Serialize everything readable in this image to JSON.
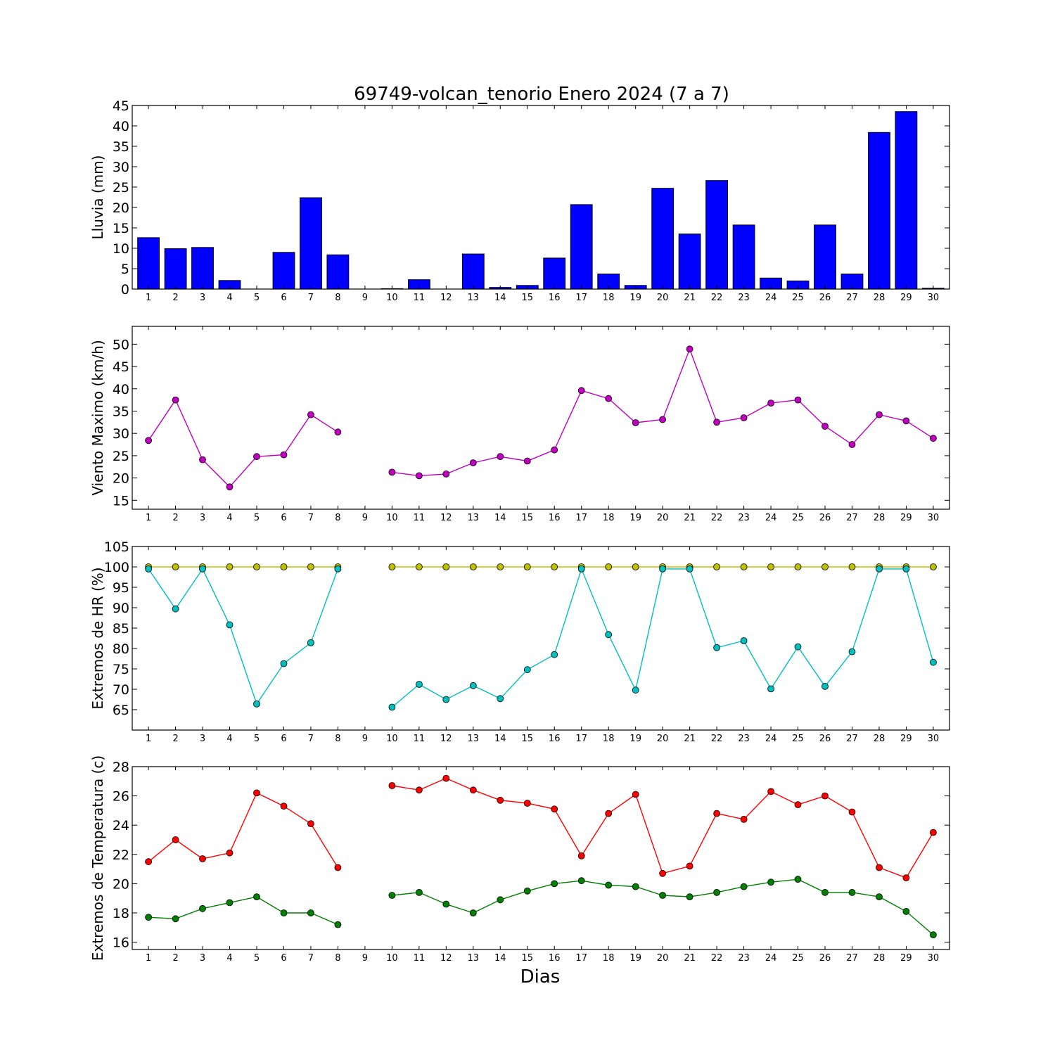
{
  "figure": {
    "title": "69749-volcan_tenorio Enero 2024  (7 a 7)",
    "xlabel": "Dias"
  },
  "chart_data": [
    {
      "type": "bar",
      "ylabel": "Lluvia (mm)",
      "ylim": [
        0,
        45
      ],
      "yticks": [
        0,
        5,
        10,
        15,
        20,
        25,
        30,
        35,
        40,
        45
      ],
      "categories": [
        "1",
        "2",
        "3",
        "4",
        "5",
        "6",
        "7",
        "8",
        "9",
        "10",
        "11",
        "12",
        "13",
        "14",
        "15",
        "16",
        "17",
        "18",
        "19",
        "20",
        "21",
        "22",
        "23",
        "24",
        "25",
        "26",
        "27",
        "28",
        "29",
        "30"
      ],
      "series": [
        {
          "color": "#0000ff",
          "values": [
            12.6,
            9.9,
            10.2,
            2.1,
            0.0,
            9.0,
            22.4,
            8.4,
            0.0,
            0.1,
            2.3,
            0.0,
            8.6,
            0.4,
            0.9,
            7.6,
            20.7,
            3.7,
            0.9,
            24.7,
            13.5,
            26.6,
            15.7,
            2.7,
            2.0,
            15.7,
            3.7,
            38.4,
            43.5,
            0.2
          ]
        }
      ],
      "grid": false
    },
    {
      "type": "line",
      "ylabel": "Viento Maximo (km/h)",
      "ylim": [
        13,
        54
      ],
      "yticks": [
        15,
        20,
        25,
        30,
        35,
        40,
        45,
        50
      ],
      "categories": [
        "1",
        "2",
        "3",
        "4",
        "5",
        "6",
        "7",
        "8",
        "9",
        "10",
        "11",
        "12",
        "13",
        "14",
        "15",
        "16",
        "17",
        "18",
        "19",
        "20",
        "21",
        "22",
        "23",
        "24",
        "25",
        "26",
        "27",
        "28",
        "29",
        "30"
      ],
      "series": [
        {
          "color": "#bf00bf",
          "values": [
            28.4,
            37.5,
            24.1,
            18.0,
            24.8,
            25.2,
            34.2,
            30.3,
            null,
            21.3,
            20.5,
            20.9,
            23.4,
            24.8,
            23.8,
            26.3,
            39.6,
            37.8,
            32.4,
            33.1,
            48.9,
            32.5,
            33.5,
            36.8,
            37.5,
            31.6,
            27.5,
            34.2,
            32.8,
            28.9
          ]
        }
      ],
      "grid": false
    },
    {
      "type": "line",
      "ylabel": "Extremos de HR (%)",
      "ylim": [
        60,
        105
      ],
      "yticks": [
        65,
        70,
        75,
        80,
        85,
        90,
        95,
        100,
        105
      ],
      "categories": [
        "1",
        "2",
        "3",
        "4",
        "5",
        "6",
        "7",
        "8",
        "9",
        "10",
        "11",
        "12",
        "13",
        "14",
        "15",
        "16",
        "17",
        "18",
        "19",
        "20",
        "21",
        "22",
        "23",
        "24",
        "25",
        "26",
        "27",
        "28",
        "29",
        "30"
      ],
      "series": [
        {
          "color": "#bfbf00",
          "values": [
            100,
            100,
            100,
            100,
            100,
            100,
            100,
            100,
            null,
            100,
            100,
            100,
            100,
            100,
            100,
            100,
            100,
            100,
            100,
            100,
            100,
            100,
            100,
            100,
            100,
            100,
            100,
            100,
            100,
            100
          ]
        },
        {
          "color": "#00bfbf",
          "values": [
            99.5,
            89.7,
            99.5,
            85.8,
            66.4,
            76.3,
            81.4,
            99.5,
            null,
            65.6,
            71.2,
            67.5,
            70.9,
            67.7,
            74.8,
            78.5,
            99.5,
            83.4,
            69.8,
            99.5,
            99.5,
            80.2,
            81.9,
            70.1,
            80.4,
            70.7,
            79.2,
            99.5,
            99.5,
            76.6
          ]
        }
      ],
      "grid": false
    },
    {
      "type": "line",
      "ylabel": "Extremos de Temperatura (c)",
      "ylim": [
        15.5,
        28
      ],
      "yticks": [
        16,
        18,
        20,
        22,
        24,
        26,
        28
      ],
      "categories": [
        "1",
        "2",
        "3",
        "4",
        "5",
        "6",
        "7",
        "8",
        "9",
        "10",
        "11",
        "12",
        "13",
        "14",
        "15",
        "16",
        "17",
        "18",
        "19",
        "20",
        "21",
        "22",
        "23",
        "24",
        "25",
        "26",
        "27",
        "28",
        "29",
        "30"
      ],
      "series": [
        {
          "color": "#ff0000",
          "values": [
            21.5,
            23.0,
            21.7,
            22.1,
            26.2,
            25.3,
            24.1,
            21.1,
            null,
            26.7,
            26.4,
            27.2,
            26.4,
            25.7,
            25.5,
            25.1,
            21.9,
            24.8,
            26.1,
            20.7,
            21.2,
            24.8,
            24.4,
            26.3,
            25.4,
            26.0,
            24.9,
            21.1,
            20.4,
            23.5
          ]
        },
        {
          "color": "#007f00",
          "values": [
            17.7,
            17.6,
            18.3,
            18.7,
            19.1,
            18.0,
            18.0,
            17.2,
            null,
            19.2,
            19.4,
            18.6,
            18.0,
            18.9,
            19.5,
            20.0,
            20.2,
            19.9,
            19.8,
            19.2,
            19.1,
            19.4,
            19.8,
            20.1,
            20.3,
            19.4,
            19.4,
            19.1,
            18.1,
            16.5
          ]
        }
      ],
      "grid": false
    }
  ]
}
